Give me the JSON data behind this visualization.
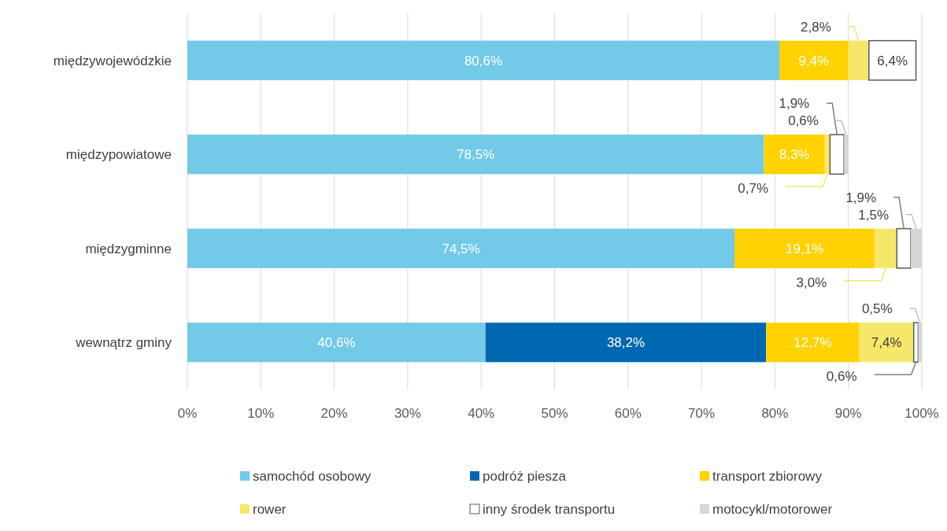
{
  "chart_data": {
    "type": "bar",
    "orientation": "horizontal",
    "stacked": true,
    "categories": [
      "międzywojewódzkie",
      "międzypowiatowe",
      "międzygminne",
      "wewnątrz gminy"
    ],
    "series": [
      {
        "name": "samochód osobowy",
        "color": "#72c9e8",
        "values": [
          80.6,
          78.5,
          74.5,
          40.6
        ],
        "value_labels": [
          "80,6%",
          "78,5%",
          "74,5%",
          "40,6%"
        ]
      },
      {
        "name": "podróż piesza",
        "color": "#0068b0",
        "values": [
          null,
          null,
          null,
          38.2
        ],
        "value_labels": [
          null,
          null,
          null,
          "38,2%"
        ]
      },
      {
        "name": "transport zbiorowy",
        "color": "#ffd200",
        "values": [
          9.4,
          8.3,
          19.1,
          12.7
        ],
        "value_labels": [
          "9,4%",
          "8,3%",
          "19,1%",
          "12,7%"
        ]
      },
      {
        "name": "rower",
        "color": "#f5e76a",
        "values": [
          2.8,
          0.7,
          3.0,
          7.4
        ],
        "value_labels": [
          "2,8%",
          "0,7%",
          "3,0%",
          "7,4%"
        ]
      },
      {
        "name": "inny środek transportu",
        "color": "#ffffff",
        "values": [
          6.4,
          1.9,
          1.9,
          0.6
        ],
        "value_labels": [
          "6,4%",
          "1,9%",
          "1,9%",
          "0,6%"
        ]
      },
      {
        "name": "motocykl/motorower",
        "color": "#d3d7d6",
        "values": [
          null,
          0.6,
          1.5,
          0.5
        ],
        "value_labels": [
          null,
          "0,6%",
          "1,5%",
          "0,5%"
        ]
      }
    ],
    "xlim": [
      0,
      100
    ],
    "xticks": [
      {
        "value": 0,
        "label": "0%"
      },
      {
        "value": 10,
        "label": "10%"
      },
      {
        "value": 20,
        "label": "20%"
      },
      {
        "value": 30,
        "label": "30%"
      },
      {
        "value": 40,
        "label": "40%"
      },
      {
        "value": 50,
        "label": "50%"
      },
      {
        "value": 60,
        "label": "60%"
      },
      {
        "value": 70,
        "label": "70%"
      },
      {
        "value": 80,
        "label": "80%"
      },
      {
        "value": 90,
        "label": "90%"
      },
      {
        "value": 100,
        "label": "100%"
      }
    ],
    "grid": "x",
    "legend": "bottom"
  }
}
